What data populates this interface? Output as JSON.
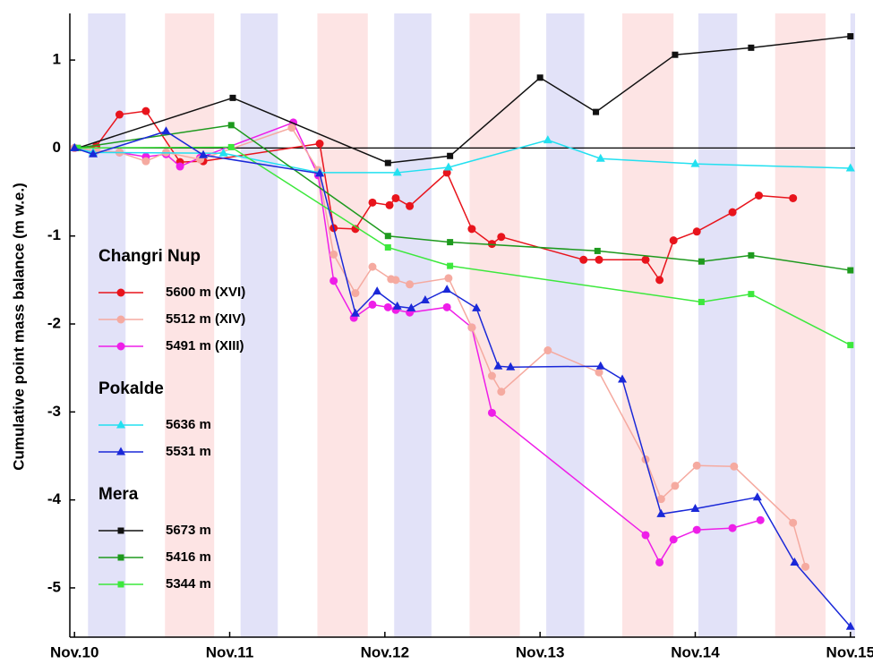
{
  "chart_data": {
    "type": "line",
    "ylabel": "Cumulative point mass balance (m w.e.)",
    "xlim": [
      -0.03,
      5.03
    ],
    "ylim": [
      -5.56,
      1.53
    ],
    "xticks": [
      {
        "value": 0,
        "label": "Nov.10"
      },
      {
        "value": 1,
        "label": "Nov.11"
      },
      {
        "value": 2,
        "label": "Nov.12"
      },
      {
        "value": 3,
        "label": "Nov.13"
      },
      {
        "value": 4,
        "label": "Nov.14"
      },
      {
        "value": 5,
        "label": "Nov.15"
      }
    ],
    "yticks": [
      1,
      0,
      -1,
      -2,
      -3,
      -4,
      -5
    ],
    "hline": 0,
    "bands": [
      {
        "x": [
          0.087,
          0.329
        ],
        "color": "#e2e2f8"
      },
      {
        "x": [
          0.583,
          0.9
        ],
        "color": "#fde4e4"
      },
      {
        "x": [
          1.07,
          1.31
        ],
        "color": "#e2e2f8"
      },
      {
        "x": [
          1.565,
          1.89
        ],
        "color": "#fde4e4"
      },
      {
        "x": [
          2.06,
          2.3
        ],
        "color": "#e2e2f8"
      },
      {
        "x": [
          2.546,
          2.87
        ],
        "color": "#fde4e4"
      },
      {
        "x": [
          3.04,
          3.285
        ],
        "color": "#e2e2f8"
      },
      {
        "x": [
          3.53,
          3.86
        ],
        "color": "#fde4e4"
      },
      {
        "x": [
          4.02,
          4.27
        ],
        "color": "#e2e2f8"
      },
      {
        "x": [
          4.515,
          4.84
        ],
        "color": "#fde4e4"
      },
      {
        "x": [
          5.0,
          5.03
        ],
        "color": "#e2e2f8"
      }
    ],
    "series": [
      {
        "group": "Changri Nup",
        "name": "5600 m (XVI)",
        "color": "#e8141c",
        "marker": "circle",
        "x": [
          0,
          0.14,
          0.29,
          0.46,
          0.68,
          0.83,
          1.58,
          1.67,
          1.81,
          1.92,
          2.03,
          2.07,
          2.16,
          2.4,
          2.56,
          2.69,
          2.75,
          3.28,
          3.38,
          3.68,
          3.77,
          3.86,
          4.01,
          4.24,
          4.41,
          4.63
        ],
        "values": [
          0,
          0.02,
          0.38,
          0.42,
          -0.16,
          -0.15,
          0.05,
          -0.91,
          -0.92,
          -0.62,
          -0.65,
          -0.57,
          -0.66,
          -0.28,
          -0.92,
          -1.09,
          -1.01,
          -1.27,
          -1.27,
          -1.27,
          -1.5,
          -1.05,
          -0.95,
          -0.73,
          -0.54,
          -0.57
        ]
      },
      {
        "group": "Changri Nup",
        "name": "5512 m (XIV)",
        "color": "#f5aaa0",
        "marker": "circle",
        "x": [
          0,
          0.14,
          0.29,
          0.46,
          0.59,
          0.81,
          1.4,
          1.57,
          1.67,
          1.81,
          1.92,
          2.04,
          2.07,
          2.16,
          2.41,
          2.56,
          2.69,
          2.75,
          3.05,
          3.38,
          3.68,
          3.78,
          3.87,
          4.01,
          4.25,
          4.63,
          4.71
        ],
        "values": [
          0,
          -0.03,
          -0.05,
          -0.15,
          -0.05,
          -0.13,
          0.23,
          -0.25,
          -1.21,
          -1.65,
          -1.35,
          -1.49,
          -1.5,
          -1.55,
          -1.48,
          -2.04,
          -2.59,
          -2.77,
          -2.3,
          -2.55,
          -3.54,
          -3.99,
          -3.84,
          -3.61,
          -3.62,
          -4.26,
          -4.76
        ]
      },
      {
        "group": "Changri Nup",
        "name": "5491 m (XIII)",
        "color": "#ee1ee8",
        "marker": "circle",
        "x": [
          0,
          0.14,
          0.29,
          0.46,
          0.59,
          0.68,
          0.81,
          1.41,
          1.57,
          1.67,
          1.8,
          1.92,
          2.02,
          2.07,
          2.16,
          2.4,
          2.56,
          2.69,
          3.68,
          3.77,
          3.86,
          4.01,
          4.24,
          4.42
        ],
        "values": [
          0,
          -0.03,
          -0.05,
          -0.1,
          -0.07,
          -0.21,
          -0.11,
          0.29,
          -0.31,
          -1.51,
          -1.93,
          -1.78,
          -1.81,
          -1.84,
          -1.87,
          -1.81,
          -2.04,
          -3.01,
          -4.4,
          -4.71,
          -4.45,
          -4.34,
          -4.32,
          -4.23
        ]
      },
      {
        "group": "Pokalde",
        "name": "5636 m",
        "color": "#22e0f0",
        "marker": "triangle",
        "x": [
          0,
          0.12,
          0.96,
          1.58,
          2.08,
          2.41,
          3.05,
          3.39,
          4.0,
          5.0
        ],
        "values": [
          0,
          -0.05,
          -0.06,
          -0.28,
          -0.28,
          -0.22,
          0.09,
          -0.12,
          -0.18,
          -0.23
        ]
      },
      {
        "group": "Pokalde",
        "name": "5531 m",
        "color": "#1a28d8",
        "marker": "triangle",
        "x": [
          0,
          0.12,
          0.59,
          0.83,
          1.58,
          1.81,
          1.95,
          2.08,
          2.17,
          2.26,
          2.4,
          2.59,
          2.73,
          2.81,
          3.39,
          3.53,
          3.78,
          4.0,
          4.4,
          4.64,
          5.0
        ],
        "values": [
          0,
          -0.07,
          0.19,
          -0.08,
          -0.29,
          -1.88,
          -1.63,
          -1.8,
          -1.82,
          -1.73,
          -1.61,
          -1.82,
          -2.48,
          -2.49,
          -2.48,
          -2.63,
          -4.16,
          -4.1,
          -3.97,
          -4.71,
          -5.44
        ]
      },
      {
        "group": "Mera",
        "name": "5673 m",
        "color": "#111111",
        "marker": "square",
        "x": [
          0.02,
          1.02,
          2.02,
          2.42,
          3.0,
          3.36,
          3.87,
          4.36,
          5.0
        ],
        "values": [
          0,
          0.57,
          -0.17,
          -0.09,
          0.8,
          0.41,
          1.06,
          1.14,
          1.27
        ]
      },
      {
        "group": "Mera",
        "name": "5416 m",
        "color": "#1e9a1e",
        "marker": "square",
        "x": [
          0.02,
          1.01,
          2.02,
          2.42,
          3.37,
          4.04,
          4.36,
          5.0
        ],
        "values": [
          0,
          0.26,
          -1.0,
          -1.07,
          -1.17,
          -1.29,
          -1.22,
          -1.39
        ]
      },
      {
        "group": "Mera",
        "name": "5344 m",
        "color": "#3ce83c",
        "marker": "square",
        "x": [
          0.02,
          1.01,
          2.02,
          2.42,
          4.04,
          4.36,
          5.0
        ],
        "values": [
          0,
          0.01,
          -1.13,
          -1.34,
          -1.75,
          -1.66,
          -2.24
        ]
      }
    ]
  }
}
